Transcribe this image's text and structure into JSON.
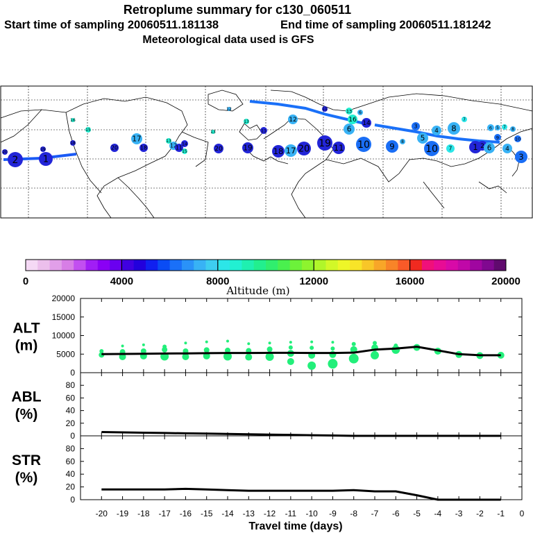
{
  "header": {
    "title": "Retroplume summary for c130_060511",
    "start_label": "Start time of sampling 20060511.181138",
    "end_label": "End time of sampling 20060511.181242",
    "met_label": "Meteorological data used is GFS"
  },
  "colorbar": {
    "label": "Altitude (m)",
    "tick_labels": [
      "0",
      "4000",
      "8000",
      "12000",
      "16000",
      "20000"
    ],
    "colors": [
      "#f5d9f5",
      "#ecbfec",
      "#e19fe9",
      "#d77ee6",
      "#c24ff0",
      "#a11ef5",
      "#8a00f5",
      "#6a00f0",
      "#4000e0",
      "#2200dd",
      "#1020f0",
      "#0a4cf5",
      "#1a70f8",
      "#2a92f8",
      "#38b2f5",
      "#3ecdf0",
      "#2ce6e8",
      "#22f0d2",
      "#1ff0b0",
      "#22ef8e",
      "#30ee6e",
      "#4af04e",
      "#6cf23a",
      "#8ef42e",
      "#b0f62a",
      "#d2f828",
      "#eef628",
      "#f8e428",
      "#f8c628",
      "#f8a628",
      "#f88428",
      "#f85a28",
      "#f02a20",
      "#f0107a",
      "#e80c95",
      "#d80aa8",
      "#c008a8",
      "#a006a0",
      "#800890",
      "#600a6e"
    ]
  },
  "map": {
    "name": "retroplume-map",
    "labels": [
      {
        "n": "1",
        "c": "#2225d8"
      },
      {
        "n": "2",
        "c": "#2225d8"
      },
      {
        "n": "3",
        "c": "#1a6ef5"
      },
      {
        "n": "4",
        "c": "#38b2f5"
      },
      {
        "n": "5",
        "c": "#38b2f5"
      },
      {
        "n": "6",
        "c": "#38b2f5"
      },
      {
        "n": "7",
        "c": "#2ce6e8"
      },
      {
        "n": "8",
        "c": "#38b2f5"
      },
      {
        "n": "9",
        "c": "#1a6ef5"
      },
      {
        "n": "10",
        "c": "#1a6ef5"
      },
      {
        "n": "11",
        "c": "#2225d8"
      },
      {
        "n": "12",
        "c": "#38b2f5"
      },
      {
        "n": "13",
        "c": "#22f0d2"
      },
      {
        "n": "14",
        "c": "#2225d8"
      },
      {
        "n": "15",
        "c": "#22f0d2"
      },
      {
        "n": "16",
        "c": "#22f0d2"
      },
      {
        "n": "17",
        "c": "#38b2f5"
      },
      {
        "n": "18",
        "c": "#2225d8"
      },
      {
        "n": "19",
        "c": "#2225d8"
      },
      {
        "n": "20",
        "c": "#2225d8"
      }
    ]
  },
  "chart_data": [
    {
      "type": "line",
      "name": "ALT",
      "ylabel_top": "ALT",
      "ylabel_bottom": "(m)",
      "x": [
        -20,
        -19,
        -18,
        -17,
        -16,
        -15,
        -14,
        -13,
        -12,
        -11,
        -10,
        -9,
        -8,
        -7,
        -6,
        -5,
        -4,
        -3,
        -2,
        -1
      ],
      "y": [
        5000,
        5050,
        5100,
        5150,
        5200,
        5250,
        5300,
        5300,
        5350,
        5350,
        5300,
        5300,
        5400,
        6200,
        6500,
        7000,
        6000,
        5000,
        4700,
        4700
      ],
      "ylim": [
        0,
        20000
      ],
      "yticks": [
        0,
        5000,
        10000,
        15000,
        20000
      ],
      "ytick_labels": [
        "0",
        "5000",
        "10000",
        "15000",
        "20000"
      ],
      "scatter_color": "#22ef7a",
      "scatter": [
        {
          "x": -20,
          "y": 4800,
          "s": 4
        },
        {
          "x": -20,
          "y": 5800,
          "s": 3
        },
        {
          "x": -19,
          "y": 4300,
          "s": 5
        },
        {
          "x": -19,
          "y": 5600,
          "s": 4
        },
        {
          "x": -19,
          "y": 7200,
          "s": 2
        },
        {
          "x": -18,
          "y": 4500,
          "s": 5
        },
        {
          "x": -18,
          "y": 5800,
          "s": 4
        },
        {
          "x": -18,
          "y": 7500,
          "s": 2
        },
        {
          "x": -17,
          "y": 4400,
          "s": 6
        },
        {
          "x": -17,
          "y": 6200,
          "s": 4
        },
        {
          "x": -17,
          "y": 7000,
          "s": 3
        },
        {
          "x": -16,
          "y": 4300,
          "s": 5
        },
        {
          "x": -16,
          "y": 5800,
          "s": 4
        },
        {
          "x": -16,
          "y": 8000,
          "s": 2
        },
        {
          "x": -15,
          "y": 4500,
          "s": 5
        },
        {
          "x": -15,
          "y": 6100,
          "s": 4
        },
        {
          "x": -15,
          "y": 8300,
          "s": 2
        },
        {
          "x": -14,
          "y": 4400,
          "s": 6
        },
        {
          "x": -14,
          "y": 6000,
          "s": 4
        },
        {
          "x": -14,
          "y": 8500,
          "s": 2
        },
        {
          "x": -13,
          "y": 4200,
          "s": 5
        },
        {
          "x": -13,
          "y": 5900,
          "s": 4
        },
        {
          "x": -13,
          "y": 7800,
          "s": 2
        },
        {
          "x": -12,
          "y": 4300,
          "s": 6
        },
        {
          "x": -12,
          "y": 6300,
          "s": 4
        },
        {
          "x": -12,
          "y": 8000,
          "s": 2
        },
        {
          "x": -11,
          "y": 3000,
          "s": 5
        },
        {
          "x": -11,
          "y": 5200,
          "s": 5
        },
        {
          "x": -11,
          "y": 6800,
          "s": 3
        },
        {
          "x": -11,
          "y": 8200,
          "s": 2
        },
        {
          "x": -10,
          "y": 1900,
          "s": 6
        },
        {
          "x": -10,
          "y": 4700,
          "s": 5
        },
        {
          "x": -10,
          "y": 6700,
          "s": 3
        },
        {
          "x": -10,
          "y": 8300,
          "s": 2
        },
        {
          "x": -9,
          "y": 2400,
          "s": 7
        },
        {
          "x": -9,
          "y": 4900,
          "s": 5
        },
        {
          "x": -9,
          "y": 6500,
          "s": 3
        },
        {
          "x": -9,
          "y": 8200,
          "s": 2
        },
        {
          "x": -8,
          "y": 3800,
          "s": 7
        },
        {
          "x": -8,
          "y": 6200,
          "s": 5
        },
        {
          "x": -8,
          "y": 7700,
          "s": 3
        },
        {
          "x": -7,
          "y": 4700,
          "s": 6
        },
        {
          "x": -7,
          "y": 6700,
          "s": 5
        },
        {
          "x": -7,
          "y": 8000,
          "s": 3
        },
        {
          "x": -6,
          "y": 6200,
          "s": 6
        },
        {
          "x": -6,
          "y": 7300,
          "s": 3
        },
        {
          "x": -5,
          "y": 6800,
          "s": 5
        },
        {
          "x": -4,
          "y": 5800,
          "s": 5
        },
        {
          "x": -3,
          "y": 4900,
          "s": 5
        },
        {
          "x": -2,
          "y": 4600,
          "s": 5
        },
        {
          "x": -1,
          "y": 4700,
          "s": 5
        }
      ]
    },
    {
      "type": "line",
      "name": "ABL",
      "ylabel_top": "ABL",
      "ylabel_bottom": "(%)",
      "x": [
        -20,
        -19,
        -18,
        -17,
        -16,
        -15,
        -14,
        -13,
        -12,
        -11,
        -10,
        -9,
        -8,
        -7,
        -6,
        -5,
        -4,
        -3,
        -2,
        -1
      ],
      "y": [
        6,
        5.5,
        5,
        4.5,
        4,
        3.5,
        3,
        2.5,
        2,
        1.5,
        1,
        0.5,
        0,
        0,
        0,
        0,
        0,
        0,
        0,
        0
      ],
      "ylim": [
        0,
        100
      ],
      "yticks": [
        0,
        20,
        40,
        60,
        80
      ],
      "ytick_labels": [
        "0",
        "20",
        "40",
        "60",
        "80"
      ]
    },
    {
      "type": "line",
      "name": "STR",
      "ylabel_top": "STR",
      "ylabel_bottom": "(%)",
      "x": [
        -20,
        -19,
        -18,
        -17,
        -16,
        -15,
        -14,
        -13,
        -12,
        -11,
        -10,
        -9,
        -8,
        -7,
        -6,
        -5,
        -4,
        -3,
        -2,
        -1
      ],
      "y": [
        16,
        16,
        16,
        16,
        17,
        16,
        15,
        14,
        14,
        14,
        14,
        14,
        15,
        13,
        13,
        7,
        0,
        0,
        0,
        0
      ],
      "ylim": [
        0,
        100
      ],
      "yticks": [
        0,
        20,
        40,
        60,
        80
      ],
      "ytick_labels": [
        "0",
        "20",
        "40",
        "60",
        "80"
      ],
      "xlabel": "Travel time (days)",
      "xticks": [
        -20,
        -19,
        -18,
        -17,
        -16,
        -15,
        -14,
        -13,
        -12,
        -11,
        -10,
        -9,
        -8,
        -7,
        -6,
        -5,
        -4,
        -3,
        -2,
        -1,
        0
      ],
      "xtick_labels": [
        "-20",
        "-19",
        "-18",
        "-17",
        "-16",
        "-15",
        "-14",
        "-13",
        "-12",
        "-11",
        "-10",
        "-9",
        "-8",
        "-7",
        "-6",
        "-5",
        "-4",
        "-3",
        "-2",
        "-1",
        "0"
      ]
    }
  ]
}
